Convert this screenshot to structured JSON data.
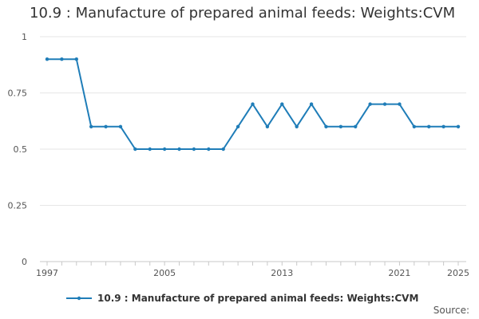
{
  "chart_data": {
    "type": "line",
    "title": "10.9 : Manufacture of prepared animal feeds: Weights:CVM",
    "xlabel": "",
    "ylabel": "",
    "x": [
      1997,
      1998,
      1999,
      2000,
      2001,
      2002,
      2003,
      2004,
      2005,
      2006,
      2007,
      2008,
      2009,
      2010,
      2011,
      2012,
      2013,
      2014,
      2015,
      2016,
      2017,
      2018,
      2019,
      2020,
      2021,
      2022,
      2023,
      2024,
      2025
    ],
    "xlim": [
      1997,
      2025
    ],
    "x_ticks": [
      1997,
      2005,
      2013,
      2021,
      2025
    ],
    "ylim": [
      0,
      1
    ],
    "y_ticks": [
      0,
      0.25,
      0.5,
      0.75,
      1
    ],
    "grid": true,
    "legend_position": "bottom",
    "series": [
      {
        "name": "10.9 : Manufacture of prepared animal feeds: Weights:CVM",
        "color": "#1f7db8",
        "values": [
          0.9,
          0.9,
          0.9,
          0.6,
          0.6,
          0.6,
          0.5,
          0.5,
          0.5,
          0.5,
          0.5,
          0.5,
          0.5,
          0.6,
          0.7,
          0.6,
          0.7,
          0.6,
          0.7,
          0.6,
          0.6,
          0.6,
          0.7,
          0.7,
          0.7,
          0.6,
          0.6,
          0.6,
          0.6
        ]
      }
    ]
  },
  "legend": {
    "label": "10.9 : Manufacture of prepared animal feeds: Weights:CVM"
  },
  "source": {
    "label": "Source:"
  }
}
